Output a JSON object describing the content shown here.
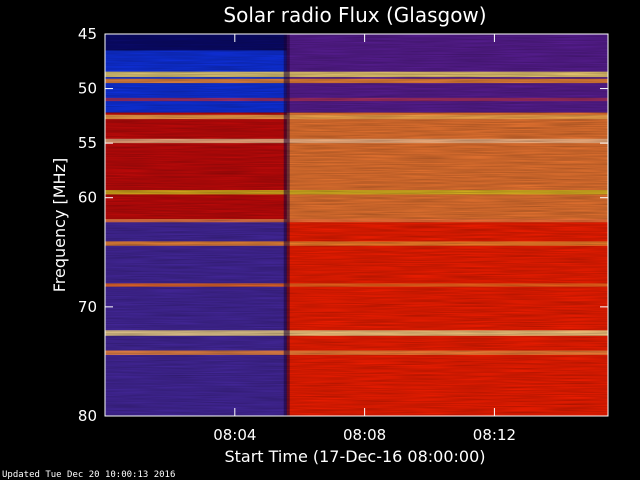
{
  "chart_data": {
    "type": "heatmap",
    "title": "Solar radio Flux (Glasgow)",
    "xlabel": "Start Time (17-Dec-16 08:00:00)",
    "ylabel": "Frequency [MHz]",
    "x_range_minutes": [
      0,
      15.5
    ],
    "y_range_mhz": [
      45,
      80
    ],
    "y_axis_inverted": true,
    "x_ticks": [
      {
        "minute": 4,
        "label": "08:04"
      },
      {
        "minute": 8,
        "label": "08:08"
      },
      {
        "minute": 12,
        "label": "08:12"
      }
    ],
    "y_ticks": [
      {
        "mhz": 45,
        "label": "45"
      },
      {
        "mhz": 50,
        "label": "50"
      },
      {
        "mhz": 55,
        "label": "55"
      },
      {
        "mhz": 60,
        "label": "60"
      },
      {
        "mhz": 70,
        "label": "70"
      },
      {
        "mhz": 80,
        "label": "80"
      }
    ],
    "transition_minute": 5.6,
    "regions": [
      {
        "name": "pre-dark",
        "x": [
          0,
          5.6
        ],
        "y": [
          45,
          46.5
        ],
        "color": "#0a0a6e"
      },
      {
        "name": "pre-blue",
        "x": [
          0,
          5.6
        ],
        "y": [
          46.5,
          52.2
        ],
        "color": "#0f32e6"
      },
      {
        "name": "pre-red",
        "x": [
          0,
          5.6
        ],
        "y": [
          52.2,
          62
        ],
        "color": "#c80a0a"
      },
      {
        "name": "pre-purple",
        "x": [
          0,
          5.6
        ],
        "y": [
          62,
          80
        ],
        "color": "#4628a0"
      },
      {
        "name": "post-purple",
        "x": [
          5.6,
          15.5
        ],
        "y": [
          45,
          52.2
        ],
        "color": "#5a1e96"
      },
      {
        "name": "post-orange",
        "x": [
          5.6,
          15.5
        ],
        "y": [
          52.2,
          62
        ],
        "color": "#f07832"
      },
      {
        "name": "post-red",
        "x": [
          5.6,
          15.5
        ],
        "y": [
          62,
          80
        ],
        "color": "#fa1e00"
      }
    ],
    "bands": [
      {
        "mhz": 48.7,
        "width": 0.5,
        "color": "#ffe070"
      },
      {
        "mhz": 49.3,
        "width": 0.4,
        "color": "#ff9030"
      },
      {
        "mhz": 51.0,
        "width": 0.3,
        "color": "#b03060"
      },
      {
        "mhz": 52.6,
        "width": 0.4,
        "color": "#ffb050"
      },
      {
        "mhz": 54.8,
        "width": 0.4,
        "color": "#ffc090"
      },
      {
        "mhz": 59.5,
        "width": 0.4,
        "color": "#e0c020"
      },
      {
        "mhz": 62.1,
        "width": 0.3,
        "color": "#ff8040"
      },
      {
        "mhz": 64.2,
        "width": 0.4,
        "color": "#ff9030"
      },
      {
        "mhz": 68.0,
        "width": 0.3,
        "color": "#ff7020"
      },
      {
        "mhz": 72.4,
        "width": 0.5,
        "color": "#ffe090"
      },
      {
        "mhz": 74.2,
        "width": 0.4,
        "color": "#ff9040"
      }
    ]
  },
  "footer": {
    "updated": "Updated Tue Dec 20 10:00:13 2016"
  }
}
